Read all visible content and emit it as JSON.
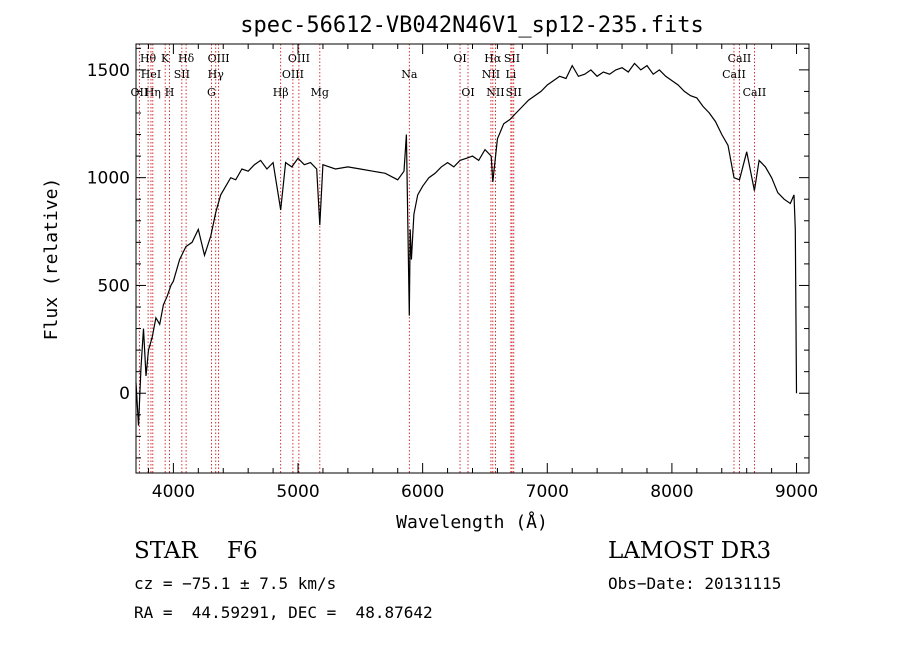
{
  "chart_data": {
    "type": "line",
    "title": "spec-56612-VB042N46V1_sp12-235.fits",
    "xlabel": "Wavelength (Å)",
    "ylabel": "Flux (relative)",
    "xlim": [
      3700,
      9100
    ],
    "ylim": [
      -370,
      1620
    ],
    "x_ticks": [
      4000,
      5000,
      6000,
      7000,
      8000,
      9000
    ],
    "y_ticks": [
      0,
      500,
      1000,
      1500
    ],
    "grid": false,
    "line_color": "#000000",
    "marker_color": "#cc0000",
    "spectrum": {
      "x": [
        3700,
        3720,
        3740,
        3760,
        3780,
        3800,
        3830,
        3860,
        3890,
        3920,
        3950,
        3980,
        4000,
        4050,
        4100,
        4150,
        4200,
        4250,
        4300,
        4340,
        4380,
        4420,
        4460,
        4500,
        4550,
        4600,
        4650,
        4700,
        4750,
        4800,
        4861,
        4900,
        4950,
        5000,
        5050,
        5100,
        5150,
        5175,
        5200,
        5300,
        5400,
        5500,
        5600,
        5700,
        5800,
        5850,
        5870,
        5885,
        5893,
        5900,
        5910,
        5930,
        5960,
        6000,
        6050,
        6100,
        6150,
        6200,
        6250,
        6300,
        6350,
        6400,
        6450,
        6500,
        6550,
        6563,
        6600,
        6650,
        6700,
        6750,
        6800,
        6850,
        6900,
        6950,
        7000,
        7050,
        7100,
        7150,
        7200,
        7250,
        7300,
        7350,
        7400,
        7450,
        7500,
        7550,
        7600,
        7650,
        7700,
        7750,
        7800,
        7850,
        7900,
        7950,
        8000,
        8050,
        8100,
        8150,
        8200,
        8250,
        8300,
        8350,
        8400,
        8450,
        8498,
        8542,
        8600,
        8662,
        8700,
        8750,
        8800,
        8850,
        8900,
        8950,
        8980,
        8990,
        9000
      ],
      "y": [
        50,
        -150,
        120,
        300,
        80,
        200,
        260,
        350,
        320,
        410,
        450,
        500,
        520,
        620,
        680,
        700,
        760,
        640,
        730,
        840,
        920,
        960,
        1000,
        990,
        1040,
        1030,
        1060,
        1080,
        1040,
        1070,
        850,
        1070,
        1050,
        1090,
        1060,
        1070,
        1040,
        780,
        1060,
        1040,
        1050,
        1040,
        1030,
        1020,
        990,
        1030,
        1200,
        650,
        360,
        760,
        620,
        830,
        920,
        960,
        1000,
        1020,
        1050,
        1070,
        1050,
        1080,
        1090,
        1100,
        1080,
        1130,
        1100,
        980,
        1180,
        1250,
        1270,
        1300,
        1330,
        1360,
        1380,
        1400,
        1430,
        1450,
        1470,
        1460,
        1520,
        1470,
        1480,
        1500,
        1470,
        1490,
        1480,
        1500,
        1510,
        1490,
        1530,
        1500,
        1520,
        1480,
        1500,
        1470,
        1450,
        1430,
        1400,
        1380,
        1370,
        1330,
        1300,
        1260,
        1200,
        1150,
        1000,
        990,
        1120,
        940,
        1080,
        1050,
        1000,
        930,
        900,
        880,
        920,
        760,
        0
      ]
    },
    "lines": [
      {
        "label": "Hθ",
        "x": 3797,
        "row": 1
      },
      {
        "label": "OII",
        "x": 3727,
        "row": 3
      },
      {
        "label": "HeI",
        "x": 3820,
        "row": 2
      },
      {
        "label": "Hη",
        "x": 3835,
        "row": 3
      },
      {
        "label": "K",
        "x": 3934,
        "row": 1
      },
      {
        "label": "H",
        "x": 3969,
        "row": 3
      },
      {
        "label": "SII",
        "x": 4068,
        "row": 2
      },
      {
        "label": "Hδ",
        "x": 4102,
        "row": 1
      },
      {
        "label": "OIII",
        "x": 4363,
        "row": 1
      },
      {
        "label": "Hγ",
        "x": 4340,
        "row": 2
      },
      {
        "label": "G",
        "x": 4305,
        "row": 3
      },
      {
        "label": "Hβ",
        "x": 4861,
        "row": 3
      },
      {
        "label": "OIII",
        "x": 5007,
        "row": 1
      },
      {
        "label": "OIII",
        "x": 4959,
        "row": 2
      },
      {
        "label": "Mg",
        "x": 5175,
        "row": 3
      },
      {
        "label": "Na",
        "x": 5893,
        "row": 2
      },
      {
        "label": "OI",
        "x": 6300,
        "row": 1
      },
      {
        "label": "OI",
        "x": 6364,
        "row": 3
      },
      {
        "label": "Hα",
        "x": 6563,
        "row": 1
      },
      {
        "label": "NII",
        "x": 6548,
        "row": 2
      },
      {
        "label": "NII",
        "x": 6584,
        "row": 3
      },
      {
        "label": "SII",
        "x": 6717,
        "row": 1
      },
      {
        "label": "Li",
        "x": 6708,
        "row": 2
      },
      {
        "label": "SII",
        "x": 6731,
        "row": 3
      },
      {
        "label": "CaII",
        "x": 8542,
        "row": 1
      },
      {
        "label": "CaII",
        "x": 8498,
        "row": 2
      },
      {
        "label": "CaII",
        "x": 8662,
        "row": 3
      }
    ]
  },
  "footer": {
    "class_text": "STAR    F6",
    "cz_text": "cz = −75.1 ± 7.5 km/s",
    "radec_text": "RA =  44.59291, DEC =  48.87642",
    "survey_text": "LAMOST DR3",
    "obsdate_text": "Obs−Date: 20131115"
  }
}
